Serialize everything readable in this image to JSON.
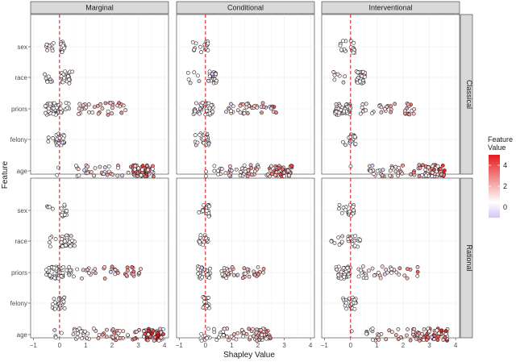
{
  "chart_data": {
    "type": "scatter",
    "subtype": "jittered beeswarm facet grid",
    "xlabel": "Shapley Value",
    "ylabel": "Feature",
    "xlim": [
      -1,
      4
    ],
    "x_ticks": [
      -1,
      0,
      1,
      2,
      3,
      4
    ],
    "x_tick_labels": [
      "−1",
      "0",
      "1",
      "2",
      "3",
      "4"
    ],
    "features": [
      "sex",
      "race",
      "priors",
      "felony",
      "age"
    ],
    "columns": [
      "Marginal",
      "Conditional",
      "Interventional"
    ],
    "rows": [
      "Classical",
      "Rational"
    ],
    "reference_line": {
      "x": 0,
      "style": "dashed",
      "color": "#e41a1c"
    },
    "legend": {
      "title": "Feature\nValue",
      "ticks": [
        4,
        2,
        0
      ],
      "color_low": "#d4c4f7",
      "color_mid": "#ffffff",
      "color_high": "#e41a1c",
      "range": [
        -1,
        5
      ]
    },
    "point_style": {
      "stroke": "#111111",
      "shape": "open-circle"
    },
    "panels": [
      {
        "row": "Classical",
        "col": "Marginal",
        "features": {
          "sex": [
            {
              "lo": -0.55,
              "hi": -0.15,
              "n": 9
            },
            {
              "lo": 0.0,
              "hi": 0.2,
              "n": 14
            }
          ],
          "race": [
            {
              "lo": -0.6,
              "hi": -0.15,
              "n": 8
            },
            {
              "lo": 0.05,
              "hi": 0.5,
              "n": 26
            }
          ],
          "priors": [
            {
              "lo": -0.55,
              "hi": 0.1,
              "n": 48
            },
            {
              "lo": 0.1,
              "hi": 1.0,
              "n": 14
            },
            {
              "lo": 1.0,
              "hi": 2.7,
              "n": 28
            }
          ],
          "felony": [
            {
              "lo": -0.5,
              "hi": -0.1,
              "n": 9
            },
            {
              "lo": -0.1,
              "hi": 0.2,
              "n": 20
            }
          ],
          "age": [
            {
              "lo": -0.15,
              "hi": 0.05,
              "n": 2
            },
            {
              "lo": 0.6,
              "hi": 3.0,
              "n": 38
            },
            {
              "lo": 2.8,
              "hi": 3.6,
              "n": 50
            }
          ]
        }
      },
      {
        "row": "Classical",
        "col": "Conditional",
        "features": {
          "sex": [
            {
              "lo": -0.55,
              "hi": -0.15,
              "n": 7
            },
            {
              "lo": -0.05,
              "hi": 0.1,
              "n": 12
            }
          ],
          "race": [
            {
              "lo": -0.7,
              "hi": -0.2,
              "n": 6
            },
            {
              "lo": 0.1,
              "hi": 0.45,
              "n": 22
            }
          ],
          "priors": [
            {
              "lo": -0.5,
              "hi": 0.3,
              "n": 40
            },
            {
              "lo": 0.7,
              "hi": 2.7,
              "n": 40
            }
          ],
          "felony": [
            {
              "lo": -0.45,
              "hi": -0.1,
              "n": 7
            },
            {
              "lo": -0.1,
              "hi": 0.15,
              "n": 20
            }
          ],
          "age": [
            {
              "lo": -0.05,
              "hi": 0.05,
              "n": 2
            },
            {
              "lo": 0.3,
              "hi": 2.6,
              "n": 50
            },
            {
              "lo": 2.6,
              "hi": 3.3,
              "n": 40
            }
          ]
        }
      },
      {
        "row": "Classical",
        "col": "Interventional",
        "features": {
          "sex": [
            {
              "lo": -0.5,
              "hi": -0.1,
              "n": 9
            },
            {
              "lo": 0.0,
              "hi": 0.2,
              "n": 12
            }
          ],
          "race": [
            {
              "lo": -0.65,
              "hi": -0.15,
              "n": 8
            },
            {
              "lo": 0.2,
              "hi": 0.55,
              "n": 28
            }
          ],
          "priors": [
            {
              "lo": -0.6,
              "hi": 0.0,
              "n": 50
            },
            {
              "lo": 0.3,
              "hi": 2.5,
              "n": 38
            }
          ],
          "felony": [
            {
              "lo": -0.3,
              "hi": 0.05,
              "n": 8
            },
            {
              "lo": 0.0,
              "hi": 0.2,
              "n": 14
            }
          ],
          "age": [
            {
              "lo": -0.05,
              "hi": 0.05,
              "n": 1
            },
            {
              "lo": 0.7,
              "hi": 2.7,
              "n": 40
            },
            {
              "lo": 2.7,
              "hi": 3.6,
              "n": 48
            }
          ]
        }
      },
      {
        "row": "Rational",
        "col": "Marginal",
        "features": {
          "sex": [
            {
              "lo": -0.5,
              "hi": -0.2,
              "n": 4
            },
            {
              "lo": 0.05,
              "hi": 0.3,
              "n": 14
            }
          ],
          "race": [
            {
              "lo": -0.4,
              "hi": -0.1,
              "n": 5
            },
            {
              "lo": 0.05,
              "hi": 0.6,
              "n": 30
            }
          ],
          "priors": [
            {
              "lo": -0.5,
              "hi": 0.15,
              "n": 44
            },
            {
              "lo": 0.2,
              "hi": 3.1,
              "n": 45
            }
          ],
          "felony": [
            {
              "lo": -0.3,
              "hi": -0.05,
              "n": 7
            },
            {
              "lo": -0.05,
              "hi": 0.2,
              "n": 22
            }
          ],
          "age": [
            {
              "lo": -0.3,
              "hi": 0.1,
              "n": 4
            },
            {
              "lo": 0.5,
              "hi": 3.1,
              "n": 50
            },
            {
              "lo": 3.2,
              "hi": 4.0,
              "n": 48
            }
          ]
        }
      },
      {
        "row": "Rational",
        "col": "Conditional",
        "features": {
          "sex": [
            {
              "lo": -0.25,
              "hi": 0.15,
              "n": 22
            }
          ],
          "race": [
            {
              "lo": -0.25,
              "hi": 0.1,
              "n": 20
            }
          ],
          "priors": [
            {
              "lo": -0.3,
              "hi": 0.2,
              "n": 30
            },
            {
              "lo": 0.6,
              "hi": 0.9,
              "n": 18
            },
            {
              "lo": 0.9,
              "hi": 2.3,
              "n": 26
            }
          ],
          "felony": [
            {
              "lo": -0.1,
              "hi": 0.15,
              "n": 18
            }
          ],
          "age": [
            {
              "lo": -0.2,
              "hi": 0.2,
              "n": 10
            },
            {
              "lo": 0.3,
              "hi": 1.6,
              "n": 25
            },
            {
              "lo": 1.6,
              "hi": 2.5,
              "n": 40
            }
          ]
        }
      },
      {
        "row": "Rational",
        "col": "Interventional",
        "features": {
          "sex": [
            {
              "lo": -0.5,
              "hi": -0.15,
              "n": 6
            },
            {
              "lo": -0.1,
              "hi": 0.15,
              "n": 14
            }
          ],
          "race": [
            {
              "lo": -0.75,
              "hi": -0.2,
              "n": 8
            },
            {
              "lo": -0.1,
              "hi": 0.4,
              "n": 18
            }
          ],
          "priors": [
            {
              "lo": -0.55,
              "hi": 0.0,
              "n": 48
            },
            {
              "lo": 0.3,
              "hi": 2.6,
              "n": 36
            }
          ],
          "felony": [
            {
              "lo": -0.3,
              "hi": -0.05,
              "n": 7
            },
            {
              "lo": -0.05,
              "hi": 0.2,
              "n": 20
            }
          ],
          "age": [
            {
              "lo": -0.05,
              "hi": 0.05,
              "n": 1
            },
            {
              "lo": 0.6,
              "hi": 2.8,
              "n": 40
            },
            {
              "lo": 2.7,
              "hi": 3.7,
              "n": 48
            }
          ]
        }
      }
    ]
  }
}
